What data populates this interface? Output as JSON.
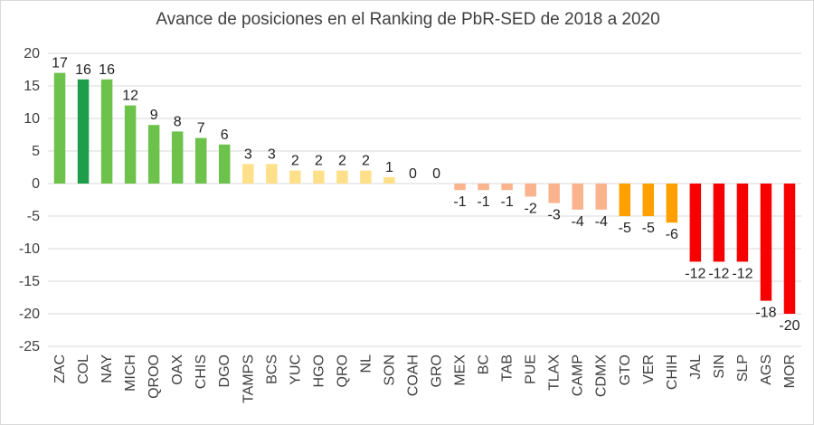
{
  "chart_data": {
    "type": "bar",
    "title": "Avance de posiciones en el Ranking de PbR-SED de 2018 a 2020",
    "xlabel": "",
    "ylabel": "",
    "ylim": [
      -25,
      20
    ],
    "yticks": [
      -25,
      -20,
      -15,
      -10,
      -5,
      0,
      5,
      10,
      15,
      20
    ],
    "grid": true,
    "legend": "none",
    "categories": [
      "ZAC",
      "COL",
      "NAY",
      "MICH",
      "QROO",
      "OAX",
      "CHIS",
      "DGO",
      "TAMPS",
      "BCS",
      "YUC",
      "HGO",
      "QRO",
      "NL",
      "SON",
      "COAH",
      "GRO",
      "MEX",
      "BC",
      "TAB",
      "PUE",
      "TLAX",
      "CAMP",
      "CDMX",
      "GTO",
      "VER",
      "CHIH",
      "JAL",
      "SIN",
      "SLP",
      "AGS",
      "MOR"
    ],
    "values": [
      17,
      16,
      16,
      12,
      9,
      8,
      7,
      6,
      3,
      3,
      2,
      2,
      2,
      2,
      1,
      0,
      0,
      -1,
      -1,
      -1,
      -2,
      -3,
      -4,
      -4,
      -5,
      -5,
      -6,
      -12,
      -12,
      -12,
      -18,
      -20
    ],
    "colors": [
      "#6cc24a",
      "#1e9e4a",
      "#6cc24a",
      "#6cc24a",
      "#6cc24a",
      "#6cc24a",
      "#6cc24a",
      "#6cc24a",
      "#ffe08a",
      "#ffe08a",
      "#ffe08a",
      "#ffe08a",
      "#ffe08a",
      "#ffe08a",
      "#ffe08a",
      "#ffe08a",
      "#ffe08a",
      "#f9b48e",
      "#f9b48e",
      "#f9b48e",
      "#f9b48e",
      "#f9b48e",
      "#f9b48e",
      "#f9b48e",
      "#ffa000",
      "#ffa000",
      "#ffa000",
      "#f70000",
      "#f70000",
      "#f70000",
      "#f70000",
      "#f70000"
    ],
    "data_labels": [
      "17",
      "16",
      "16",
      "12",
      "9",
      "8",
      "7",
      "6",
      "3",
      "3",
      "2",
      "2",
      "2",
      "2",
      "1",
      "0",
      "0",
      "-1",
      "-1",
      "-1",
      "-2",
      "-3",
      "-4",
      "-4",
      "-5",
      "-5",
      "-6",
      "-12",
      "-12",
      "-12",
      "-18",
      "-20"
    ]
  }
}
